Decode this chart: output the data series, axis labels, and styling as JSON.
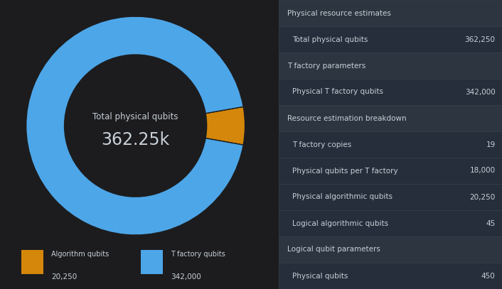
{
  "pie_values": [
    20250,
    342000
  ],
  "pie_colors": [
    "#d4870a",
    "#4da6e8"
  ],
  "pie_labels": [
    "Algorithm qubits",
    "T factory qubits"
  ],
  "pie_label_values": [
    "20,250",
    "342,000"
  ],
  "center_label_line1": "Total physical qubits",
  "center_label_line2": "362.25k",
  "bg_color": "#1c1c1e",
  "header_bg_color": "#2d3540",
  "row_bg_color": "#252e3a",
  "text_color": "#c8d0d8",
  "border_color": "#3a4550",
  "table_data": [
    {
      "section": "Physical resource estimates",
      "is_header": true,
      "label": "",
      "value": ""
    },
    {
      "section": "",
      "is_header": false,
      "label": "Total physical qubits",
      "value": "362,250"
    },
    {
      "section": "T factory parameters",
      "is_header": true,
      "label": "",
      "value": ""
    },
    {
      "section": "",
      "is_header": false,
      "label": "Physical T factory qubits",
      "value": "342,000"
    },
    {
      "section": "Resource estimation breakdown",
      "is_header": true,
      "label": "",
      "value": ""
    },
    {
      "section": "",
      "is_header": false,
      "label": "T factory copies",
      "value": "19"
    },
    {
      "section": "",
      "is_header": false,
      "label": "Physical qubits per T factory",
      "value": "18,000"
    },
    {
      "section": "",
      "is_header": false,
      "label": "Physical algorithmic qubits",
      "value": "20,250"
    },
    {
      "section": "",
      "is_header": false,
      "label": "Logical algorithmic qubits",
      "value": "45"
    },
    {
      "section": "Logical qubit parameters",
      "is_header": true,
      "label": "",
      "value": ""
    },
    {
      "section": "",
      "is_header": false,
      "label": "Physical qubits",
      "value": "450"
    }
  ]
}
